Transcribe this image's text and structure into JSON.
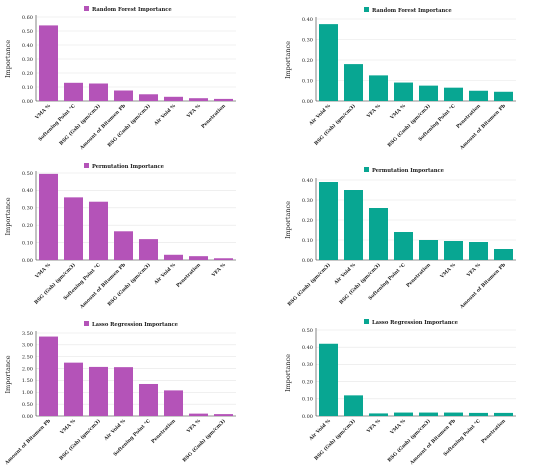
{
  "colors": {
    "purple": "#B453B8",
    "teal": "#08A692",
    "grid": "#e6e6e6",
    "axis": "#333333"
  },
  "chart_data": [
    {
      "type": "bar",
      "title": "Random Forest Importance",
      "ylabel": "Importance",
      "color": "purple",
      "ylim": [
        0,
        0.6
      ],
      "yticks": [
        "0.00",
        "0.10",
        "0.20",
        "0.30",
        "0.40",
        "0.50",
        "0.60"
      ],
      "categories": [
        "VMA %",
        "Softening Point °C",
        "BSG (Gsb) (gm/cm3)",
        "Amount of Bitumen Pb",
        "BSG (Gmb) (gm/cm3)",
        "Air Void %",
        "VFA %",
        "Penetration"
      ],
      "values": [
        0.54,
        0.13,
        0.125,
        0.075,
        0.048,
        0.03,
        0.02,
        0.015
      ]
    },
    {
      "type": "bar",
      "title": "Random Forest Importance",
      "ylabel": "Importance",
      "color": "teal",
      "ylim": [
        0,
        0.4
      ],
      "yticks": [
        "0.00",
        "0.10",
        "0.20",
        "0.30",
        "0.40"
      ],
      "categories": [
        "Air Void %",
        "BSG (Gsb) (gm/cm3)",
        "VFA %",
        "VMA %",
        "BSG (Gmb) (gm/cm3)",
        "Softening Point °C",
        "Penetration",
        "Amount of Bitumen Pb"
      ],
      "values": [
        0.375,
        0.18,
        0.125,
        0.09,
        0.075,
        0.065,
        0.05,
        0.045
      ]
    },
    {
      "type": "bar",
      "title": "Permutation Importance",
      "ylabel": "Importance",
      "color": "purple",
      "ylim": [
        0,
        0.5
      ],
      "yticks": [
        "0.00",
        "0.10",
        "0.20",
        "0.30",
        "0.40",
        "0.50"
      ],
      "categories": [
        "VMA %",
        "BSG (Gsb) (gm/cm3)",
        "Softening Point °C",
        "Amount of Bitumen Pb",
        "BSG (Gmb) (gm/cm3)",
        "Air Void %",
        "Penetration",
        "VFA %"
      ],
      "values": [
        0.495,
        0.36,
        0.335,
        0.165,
        0.12,
        0.03,
        0.022,
        0.01
      ]
    },
    {
      "type": "bar",
      "title": "Permutation Importance",
      "ylabel": "Importance",
      "color": "teal",
      "ylim": [
        0,
        0.4
      ],
      "yticks": [
        "0.00",
        "0.10",
        "0.20",
        "0.30",
        "0.40"
      ],
      "categories": [
        "BSG (Gmb) (gm/cm3)",
        "Air Void %",
        "BSG (Gsb) (gm/cm3)",
        "Softening Point °C",
        "Penetration",
        "VMA %",
        "VFA %",
        "Amount of Bitumen Pb"
      ],
      "values": [
        0.39,
        0.35,
        0.26,
        0.14,
        0.1,
        0.095,
        0.09,
        0.055
      ]
    },
    {
      "type": "bar",
      "title": "Lasso Regression Importance",
      "ylabel": "Importance",
      "color": "purple",
      "ylim": [
        0,
        3.5
      ],
      "yticks": [
        "0.00",
        "0.50",
        "1.00",
        "1.50",
        "2.00",
        "2.50",
        "3.00",
        "3.50"
      ],
      "categories": [
        "Amount of Bitumen Pb",
        "VMA %",
        "BSG (Gsb) (gm/cm3)",
        "Air Void %",
        "Softening Point °C",
        "Penetration",
        "VFA %",
        "BSG (Gmb) (gm/cm3)"
      ],
      "values": [
        3.35,
        2.25,
        2.07,
        2.06,
        1.35,
        1.08,
        0.1,
        0.08
      ]
    },
    {
      "type": "bar",
      "title": "Lasso Regression Importance",
      "ylabel": "Importance",
      "color": "teal",
      "ylim": [
        0,
        0.5
      ],
      "yticks": [
        "0.00",
        "0.10",
        "0.20",
        "0.30",
        "0.40",
        "0.50"
      ],
      "categories": [
        "Air Void %",
        "BSG (Gsb) (gm/cm3)",
        "VFA %",
        "VMA %",
        "BSG (Gmb) (gm/cm3)",
        "Amount of Bitumen Pb",
        "Softening Point °C",
        "Penetration"
      ],
      "values": [
        0.42,
        0.12,
        0.015,
        0.02,
        0.02,
        0.02,
        0.018,
        0.018
      ]
    }
  ]
}
